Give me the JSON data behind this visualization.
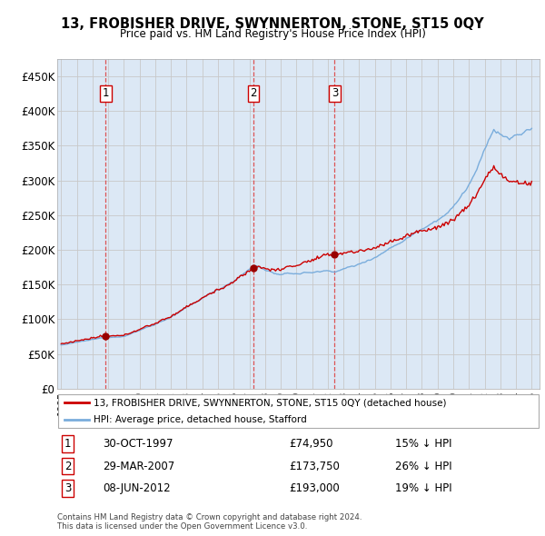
{
  "title": "13, FROBISHER DRIVE, SWYNNERTON, STONE, ST15 0QY",
  "subtitle": "Price paid vs. HM Land Registry's House Price Index (HPI)",
  "ylim": [
    0,
    475000
  ],
  "yticks": [
    0,
    50000,
    100000,
    150000,
    200000,
    250000,
    300000,
    350000,
    400000,
    450000
  ],
  "ytick_labels": [
    "£0",
    "£50K",
    "£100K",
    "£150K",
    "£200K",
    "£250K",
    "£300K",
    "£350K",
    "£400K",
    "£450K"
  ],
  "xlim_start": 1994.75,
  "xlim_end": 2025.5,
  "sale_times": [
    1997.83,
    2007.25,
    2012.44
  ],
  "sale_prices": [
    74950,
    173750,
    193000
  ],
  "sale_labels": [
    "1",
    "2",
    "3"
  ],
  "sale_info": [
    {
      "label": "1",
      "date": "30-OCT-1997",
      "price": "£74,950",
      "pct": "15% ↓ HPI"
    },
    {
      "label": "2",
      "date": "29-MAR-2007",
      "price": "£173,750",
      "pct": "26% ↓ HPI"
    },
    {
      "label": "3",
      "date": "08-JUN-2012",
      "price": "£193,000",
      "pct": "19% ↓ HPI"
    }
  ],
  "legend_property_label": "13, FROBISHER DRIVE, SWYNNERTON, STONE, ST15 0QY (detached house)",
  "legend_hpi_label": "HPI: Average price, detached house, Stafford",
  "property_line_color": "#cc0000",
  "hpi_line_color": "#7aaddc",
  "vline_color": "#dd4444",
  "marker_color": "#990000",
  "grid_color": "#c8c8c8",
  "bg_color": "#e8eef8",
  "plot_bg_color": "#dce8f5",
  "footnote": "Contains HM Land Registry data © Crown copyright and database right 2024.\nThis data is licensed under the Open Government Licence v3.0."
}
